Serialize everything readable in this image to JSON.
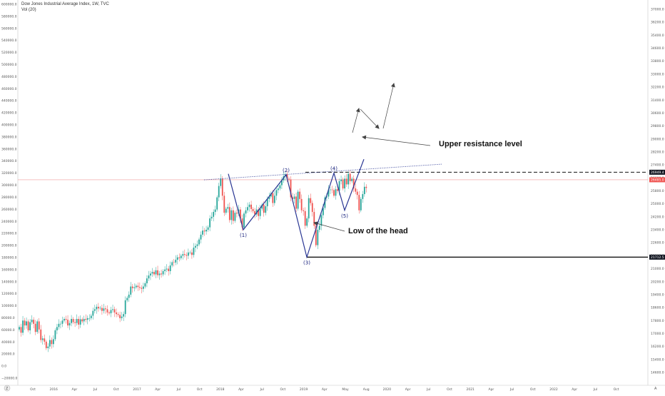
{
  "header": {
    "symbol_line": "Dow Jones Industrial Average Index, 1W, TVC",
    "volume_line": "Vol (20)"
  },
  "bottom_left_icon": "tradingview-logo",
  "bottom_right_icon": "auto-scale-icon",
  "colors": {
    "up": "#26a69a",
    "down": "#ef5350",
    "wave_line": "#283593",
    "trend_dots": "#283593",
    "arrow": "#444444",
    "price_line": "#ef9a9a",
    "support_line": "#000000"
  },
  "chart_data": {
    "type": "candlestick",
    "title": "",
    "left_axis": {
      "labels": [
        "600000.0",
        "580000.0",
        "560000.0",
        "540000.0",
        "520000.0",
        "500000.0",
        "480000.0",
        "460000.0",
        "440000.0",
        "420000.0",
        "400000.0",
        "380000.0",
        "360000.0",
        "340000.0",
        "320000.0",
        "300000.0",
        "280000.0",
        "260000.0",
        "240000.0",
        "220000.0",
        "200000.0",
        "180000.0",
        "160000.0",
        "140000.0",
        "120000.0",
        "100000.0",
        "80000.0",
        "60000.0",
        "40000.0",
        "20000.0",
        "0.0",
        "−20000.0"
      ],
      "range": [
        -20000,
        600000
      ]
    },
    "right_axis": {
      "labels": [
        "37000.0",
        "36200.0",
        "35400.0",
        "34600.0",
        "33800.0",
        "33000.0",
        "32200.0",
        "31400.0",
        "30600.0",
        "29800.0",
        "29000.0",
        "28200.0",
        "27400.0",
        "26600.0",
        "25800.0",
        "25000.0",
        "24200.0",
        "23400.0",
        "22600.0",
        "21800.0",
        "21000.0",
        "20200.0",
        "19400.0",
        "18600.0",
        "17800.0",
        "17000.0",
        "16200.0",
        "15400.0",
        "14600.0"
      ],
      "range": [
        14200,
        37300
      ],
      "markers": [
        {
          "label": "26949.4",
          "value": 26949.4,
          "style": "dark"
        },
        {
          "label": "26485.0",
          "value": 26485.0,
          "style": "red"
        },
        {
          "label": "21712.5",
          "value": 21712.5,
          "style": "dark"
        }
      ]
    },
    "x_axis": {
      "labels": [
        "Oct",
        "2016",
        "Apr",
        "Jul",
        "Oct",
        "2017",
        "Apr",
        "Jul",
        "Oct",
        "2018",
        "Apr",
        "Jul",
        "Oct",
        "2019",
        "Apr",
        "May",
        "Aug",
        "2020",
        "Apr",
        "Jul",
        "Oct",
        "2021",
        "Apr",
        "Jul",
        "Oct",
        "2022",
        "Apr",
        "Jul",
        "Oct"
      ]
    },
    "candles_weekly_close": [
      17400,
      17050,
      17800,
      17500,
      17750,
      17200,
      17700,
      17850,
      17600,
      17100,
      17750,
      17250,
      16600,
      16700,
      16500,
      16100,
      16200,
      16600,
      16350,
      16650,
      17200,
      17400,
      17600,
      17600,
      17800,
      17900,
      17850,
      17500,
      17650,
      17900,
      17700,
      17650,
      17900,
      17550,
      17880,
      17750,
      17900,
      17850,
      17950,
      17950,
      18100,
      18400,
      18500,
      18650,
      18550,
      18580,
      18400,
      18550,
      18500,
      18300,
      18250,
      18450,
      18500,
      18300,
      18200,
      18150,
      17950,
      18050,
      18200,
      19050,
      19200,
      19400,
      19900,
      19800,
      19850,
      19950,
      19870,
      19820,
      19760,
      19900,
      20100,
      20400,
      20580,
      20700,
      20800,
      20650,
      20900,
      20600,
      20700,
      20650,
      20850,
      20950,
      21000,
      20850,
      21200,
      21400,
      21380,
      21550,
      21700,
      21650,
      21800,
      21900,
      21850,
      21800,
      22000,
      22000,
      21850,
      22300,
      22400,
      22500,
      22800,
      23100,
      23350,
      23300,
      23400,
      23550,
      24100,
      24200,
      24500,
      24650,
      25400,
      26100,
      26550,
      25500,
      24450,
      24700,
      24800,
      24000,
      24600,
      23950,
      24450,
      24400,
      24650,
      24100,
      23550,
      24400,
      24600,
      24800,
      24950,
      24680,
      24550,
      24350,
      24650,
      24250,
      24700,
      24950,
      24450,
      24850,
      25300,
      25450,
      25650,
      25050,
      25500,
      25850,
      25950,
      26150,
      26450,
      26700,
      26800,
      26550,
      26500,
      25400,
      25300,
      25450,
      24700,
      25750,
      25300,
      24600,
      24550,
      23650,
      24100,
      25350,
      25050,
      24500,
      23650,
      22450,
      23400,
      23650,
      24300,
      24750,
      25400,
      25450,
      25880,
      25880,
      25850,
      25500,
      25900,
      25800,
      26400,
      26500,
      25950,
      26550,
      26200,
      26850,
      26400,
      26550,
      25950,
      25750,
      25550,
      24600,
      25300,
      25600,
      26050,
      25980
    ],
    "wave_points": [
      {
        "label": "(1)",
        "close": 23400
      },
      {
        "label": "(2)",
        "close": 26800
      },
      {
        "label": "(3)",
        "close": 21712.5
      },
      {
        "label": "(4)",
        "close": 26900
      },
      {
        "label": "(5)",
        "close": 24600
      }
    ],
    "horizontal_levels": [
      {
        "value": 26949.4,
        "style": "dashed"
      },
      {
        "value": 26485.0,
        "style": "price-line"
      },
      {
        "value": 21712.5,
        "style": "solid"
      }
    ],
    "annotations": [
      {
        "text": "Upper resistance level",
        "target": 26949.4
      },
      {
        "text": "Low of the head",
        "target": 21712.5
      }
    ],
    "grid": false
  }
}
